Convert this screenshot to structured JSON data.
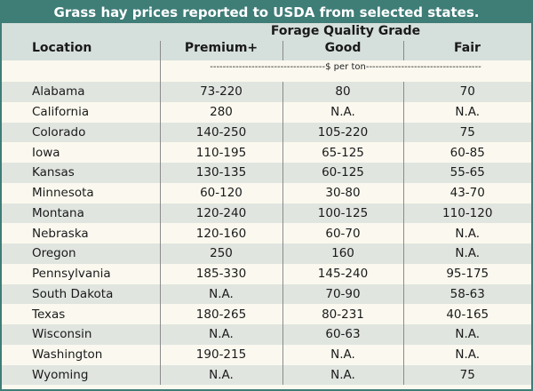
{
  "title": "Grass hay prices reported to USDA from selected states.",
  "header": {
    "group_label": "Forage Quality Grade",
    "location_label": "Location",
    "columns": [
      "Premium+",
      "Good",
      "Fair"
    ],
    "units": "------------------------------------$ per ton------------------------------------"
  },
  "rows": [
    {
      "location": "Alabama",
      "premium": "73-220",
      "good": "80",
      "fair": "70"
    },
    {
      "location": "California",
      "premium": "280",
      "good": "N.A.",
      "fair": "N.A."
    },
    {
      "location": "Colorado",
      "premium": "140-250",
      "good": "105-220",
      "fair": "75"
    },
    {
      "location": "Iowa",
      "premium": "110-195",
      "good": "65-125",
      "fair": "60-85"
    },
    {
      "location": "Kansas",
      "premium": "130-135",
      "good": "60-125",
      "fair": "55-65"
    },
    {
      "location": "Minnesota",
      "premium": "60-120",
      "good": "30-80",
      "fair": "43-70"
    },
    {
      "location": "Montana",
      "premium": "120-240",
      "good": "100-125",
      "fair": "110-120"
    },
    {
      "location": "Nebraska",
      "premium": "120-160",
      "good": "60-70",
      "fair": "N.A."
    },
    {
      "location": "Oregon",
      "premium": "250",
      "good": "160",
      "fair": "N.A."
    },
    {
      "location": "Pennsylvania",
      "premium": "185-330",
      "good": "145-240",
      "fair": "95-175"
    },
    {
      "location": "South Dakota",
      "premium": "N.A.",
      "good": "70-90",
      "fair": "58-63"
    },
    {
      "location": "Texas",
      "premium": "180-265",
      "good": "80-231",
      "fair": "40-165"
    },
    {
      "location": "Wisconsin",
      "premium": "N.A.",
      "good": "60-63",
      "fair": "N.A."
    },
    {
      "location": "Washington",
      "premium": "190-215",
      "good": "N.A.",
      "fair": "N.A."
    },
    {
      "location": "Wyoming",
      "premium": "N.A.",
      "good": "N.A.",
      "fair": "75"
    }
  ],
  "colors": {
    "title_bar": "#3f7d77",
    "header_bg": "#d5dfdb",
    "stripe": "#e0e5e0",
    "paper": "#fbf9ef"
  }
}
